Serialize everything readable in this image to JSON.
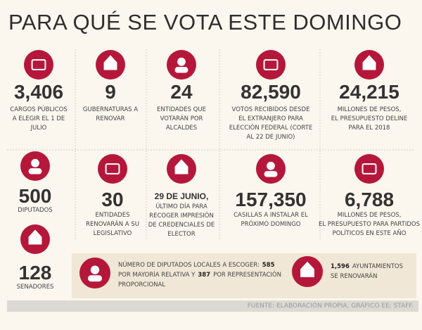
{
  "title": "PARA QUÉ SE VOTA ESTE DOMINGO",
  "stats": [
    {
      "number": "3,406",
      "lines": [
        "CARGOS PÚBLICOS",
        "A ELEGIR EL 1 DE",
        "JULIO"
      ]
    },
    {
      "number": "9",
      "lines": [
        "GUBERNATURAS A",
        "RENOVAR"
      ]
    },
    {
      "number": "24",
      "lines": [
        "ENTIDADES QUE",
        "VOTARÁN POR",
        "ALCALDES"
      ]
    },
    {
      "number": "82,590",
      "lines": [
        "VOTOS RECIBIDOS DESDE",
        "EL EXTRANJERO PARA",
        "ELECCIÓN FEDERAL (CORTE",
        "AL 22 DE JUNIO)"
      ]
    },
    {
      "number": "24,215",
      "lines": [
        "MILLONES DE PESOS,",
        "EL PRESUPUESTO DELINE",
        "PARA EL 2018"
      ]
    },
    {
      "number": "500",
      "lines": [
        "DIPUTADOS"
      ]
    },
    {
      "number": "30",
      "lines": [
        "ENTIDADES",
        "RENOVARÁN A SU",
        "LEGISLATIVO"
      ]
    },
    {
      "number": "29 DE JUNIO,",
      "lines": [
        "ÚLTIMO DÍA PARA",
        "RECOGER IMPRESIÓN",
        "DE CREDENCIALES DE",
        "ELECTOR"
      ]
    },
    {
      "number": "157,350",
      "lines": [
        "CASILLAS A INSTALAR EL",
        "PRÓXIMO DOMINGO"
      ]
    },
    {
      "number": "6,788",
      "lines": [
        "MILLONES DE PESOS,",
        "EL PRESUPUESTO PARA PARTIDOS",
        "POLÍTICOS EN ESTE AÑO"
      ]
    },
    {
      "number": "128",
      "lines": [
        "SENADORES"
      ]
    }
  ],
  "notes": [
    {
      "lines": [
        [
          {
            "text": "NÚMERO DE DIPUTADOS LOCALES A ESCOGER:"
          },
          {
            "text": "585",
            "bold": true
          }
        ],
        [
          {
            "text": "POR MAYORÍA RELATIVA Y"
          },
          {
            "text": "387",
            "bold": true
          },
          {
            "text": "POR REPRESENTACIÓN"
          }
        ],
        [
          {
            "text": "PROPORCIONAL"
          }
        ]
      ]
    },
    {
      "lines": [
        [
          {
            "text": "1,596",
            "bold": true
          },
          {
            "text": "AYUNTAMIENTOS"
          }
        ],
        [
          {
            "text": "SE RENOVARÁN"
          }
        ]
      ]
    }
  ],
  "source": "FUENTE: ELABORACIÓN PROPIA. GRÁFICO EE: STAFF."
}
